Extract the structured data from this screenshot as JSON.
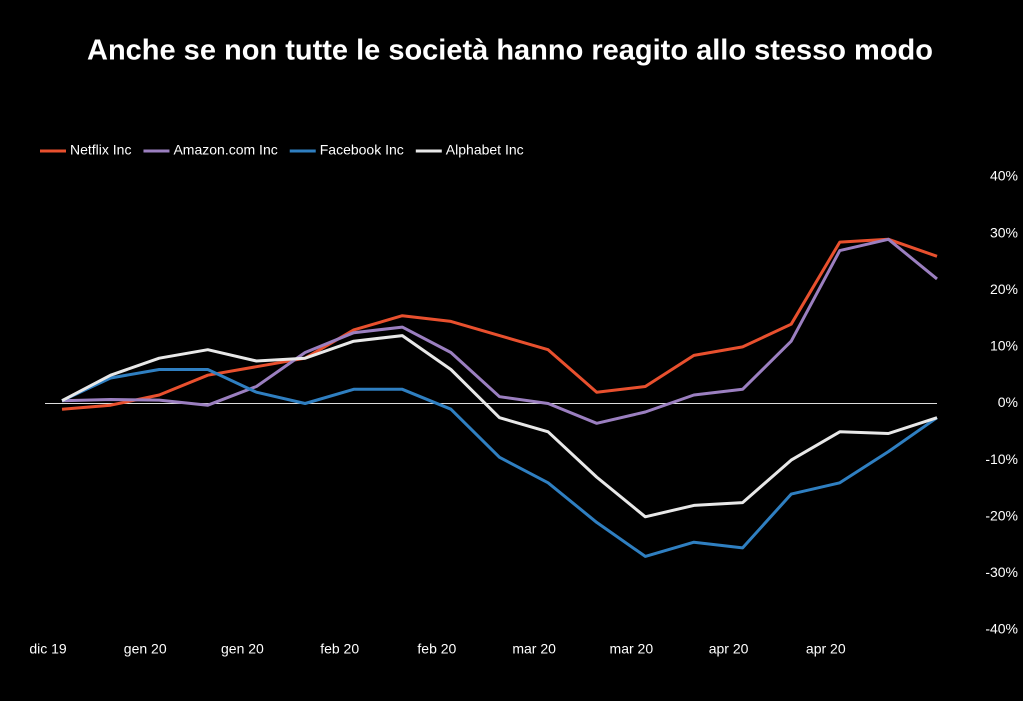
{
  "chart_data": {
    "type": "line",
    "title": "Anche se non tutte le società hanno reagito allo stesso modo",
    "categories": [
      "dic 19",
      null,
      "gen 20",
      null,
      "gen 20",
      null,
      "feb 20",
      null,
      "feb 20",
      null,
      "mar 20",
      null,
      "mar 20",
      null,
      "apr 20",
      null,
      "apr 20",
      null,
      null
    ],
    "series": [
      {
        "name": "Netflix Inc",
        "color": "#e8502e",
        "values": [
          -1,
          -0.3,
          1.5,
          5,
          6.5,
          8,
          13,
          15.5,
          14.5,
          12,
          9.5,
          2,
          3,
          8.5,
          10,
          14,
          28.5,
          29,
          26
        ]
      },
      {
        "name": "Amazon.com Inc",
        "color": "#9b7fc0",
        "values": [
          0.5,
          0.7,
          0.6,
          -0.3,
          3,
          9,
          12.5,
          13.5,
          9,
          1.2,
          0,
          -3.5,
          -1.5,
          1.5,
          2.5,
          11,
          27,
          29,
          22
        ]
      },
      {
        "name": "Facebook Inc",
        "color": "#2f7fc1",
        "values": [
          0.5,
          4.5,
          6,
          6,
          2,
          0,
          2.5,
          2.5,
          -1,
          -9.5,
          -14,
          -21,
          -27,
          -24.5,
          -25.5,
          -16,
          -14,
          -8.5,
          -2.5
        ]
      },
      {
        "name": "Alphabet Inc",
        "color": "#e8e8e8",
        "values": [
          0.5,
          5,
          8,
          9.5,
          7.5,
          8,
          11,
          12,
          6,
          -2.5,
          -5,
          -13,
          -20,
          -18,
          -17.5,
          -10,
          -5,
          -5.3,
          -2.5
        ]
      }
    ],
    "ylim": [
      -40,
      40
    ],
    "yticks": [
      {
        "value": -40,
        "label": "-40%"
      },
      {
        "value": -30,
        "label": "-30%"
      },
      {
        "value": -20,
        "label": "-20%"
      },
      {
        "value": -10,
        "label": "-10%"
      },
      {
        "value": 0,
        "label": "0%"
      },
      {
        "value": 10,
        "label": "10%"
      },
      {
        "value": 20,
        "label": "20%"
      },
      {
        "value": 30,
        "label": "30%"
      },
      {
        "value": 40,
        "label": "40%"
      }
    ],
    "zero_line": true,
    "legend": "top-left"
  }
}
